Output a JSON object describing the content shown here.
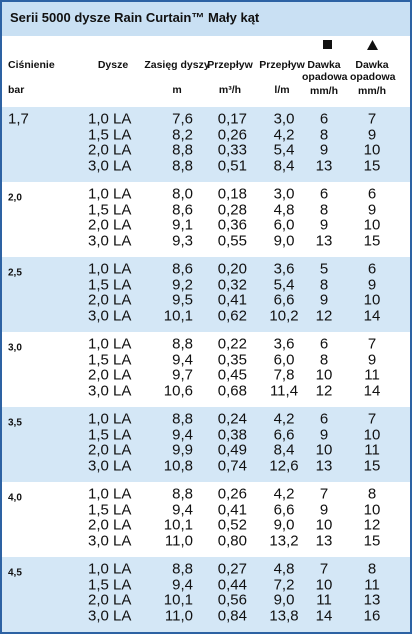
{
  "header": {
    "title": "Serii 5000 dysze Rain Curtain™ Mały kąt"
  },
  "table": {
    "columns": [
      {
        "label": "Ciśnienie",
        "unit": "bar"
      },
      {
        "label": "Dysze"
      },
      {
        "label": "Zasięg dyszy",
        "unit": "m"
      },
      {
        "label": "Przepływ",
        "unit": "m³/h"
      },
      {
        "label": "Przepływ",
        "unit": "l/m"
      },
      {
        "label": "Dawka opadowa",
        "unit": "mm/h"
      },
      {
        "label": "Dawka opadowa",
        "unit": "mm/h"
      }
    ],
    "groups": [
      {
        "pressure": "1,7",
        "rows": [
          [
            "1,0 LA",
            "7,6",
            "0,17",
            "3,0",
            "6",
            "7"
          ],
          [
            "1,5 LA",
            "8,2",
            "0,26",
            "4,2",
            "8",
            "9"
          ],
          [
            "2,0 LA",
            "8,8",
            "0,33",
            "5,4",
            "9",
            "10"
          ],
          [
            "3,0 LA",
            "8,8",
            "0,51",
            "8,4",
            "13",
            "15"
          ]
        ]
      },
      {
        "pressure": "2,0",
        "rows": [
          [
            "1,0 LA",
            "8,0",
            "0,18",
            "3,0",
            "6",
            "6"
          ],
          [
            "1,5 LA",
            "8,6",
            "0,28",
            "4,8",
            "8",
            "9"
          ],
          [
            "2,0 LA",
            "9,1",
            "0,36",
            "6,0",
            "9",
            "10"
          ],
          [
            "3,0 LA",
            "9,3",
            "0,55",
            "9,0",
            "13",
            "15"
          ]
        ]
      },
      {
        "pressure": "2,5",
        "rows": [
          [
            "1,0 LA",
            "8,6",
            "0,20",
            "3,6",
            "5",
            "6"
          ],
          [
            "1,5 LA",
            "9,2",
            "0,32",
            "5,4",
            "8",
            "9"
          ],
          [
            "2,0 LA",
            "9,5",
            "0,41",
            "6,6",
            "9",
            "10"
          ],
          [
            "3,0 LA",
            "10,1",
            "0,62",
            "10,2",
            "12",
            "14"
          ]
        ]
      },
      {
        "pressure": "3,0",
        "rows": [
          [
            "1,0 LA",
            "8,8",
            "0,22",
            "3,6",
            "6",
            "7"
          ],
          [
            "1,5 LA",
            "9,4",
            "0,35",
            "6,0",
            "8",
            "9"
          ],
          [
            "2,0 LA",
            "9,7",
            "0,45",
            "7,8",
            "10",
            "11"
          ],
          [
            "3,0 LA",
            "10,6",
            "0,68",
            "11,4",
            "12",
            "14"
          ]
        ]
      },
      {
        "pressure": "3,5",
        "rows": [
          [
            "1,0 LA",
            "8,8",
            "0,24",
            "4,2",
            "6",
            "7"
          ],
          [
            "1,5 LA",
            "9,4",
            "0,38",
            "6,6",
            "9",
            "10"
          ],
          [
            "2,0 LA",
            "9,9",
            "0,49",
            "8,4",
            "10",
            "11"
          ],
          [
            "3,0 LA",
            "10,8",
            "0,74",
            "12,6",
            "13",
            "15"
          ]
        ]
      },
      {
        "pressure": "4,0",
        "rows": [
          [
            "1,0 LA",
            "8,8",
            "0,26",
            "4,2",
            "7",
            "8"
          ],
          [
            "1,5 LA",
            "9,4",
            "0,41",
            "6,6",
            "9",
            "10"
          ],
          [
            "2,0 LA",
            "10,1",
            "0,52",
            "9,0",
            "10",
            "12"
          ],
          [
            "3,0 LA",
            "11,0",
            "0,80",
            "13,2",
            "13",
            "15"
          ]
        ]
      },
      {
        "pressure": "4,5",
        "rows": [
          [
            "1,0 LA",
            "8,8",
            "0,27",
            "4,8",
            "7",
            "8"
          ],
          [
            "1,5 LA",
            "9,4",
            "0,44",
            "7,2",
            "10",
            "11"
          ],
          [
            "2,0 LA",
            "10,1",
            "0,56",
            "9,0",
            "11",
            "13"
          ],
          [
            "3,0 LA",
            "11,0",
            "0,84",
            "13,8",
            "14",
            "16"
          ]
        ]
      }
    ]
  }
}
